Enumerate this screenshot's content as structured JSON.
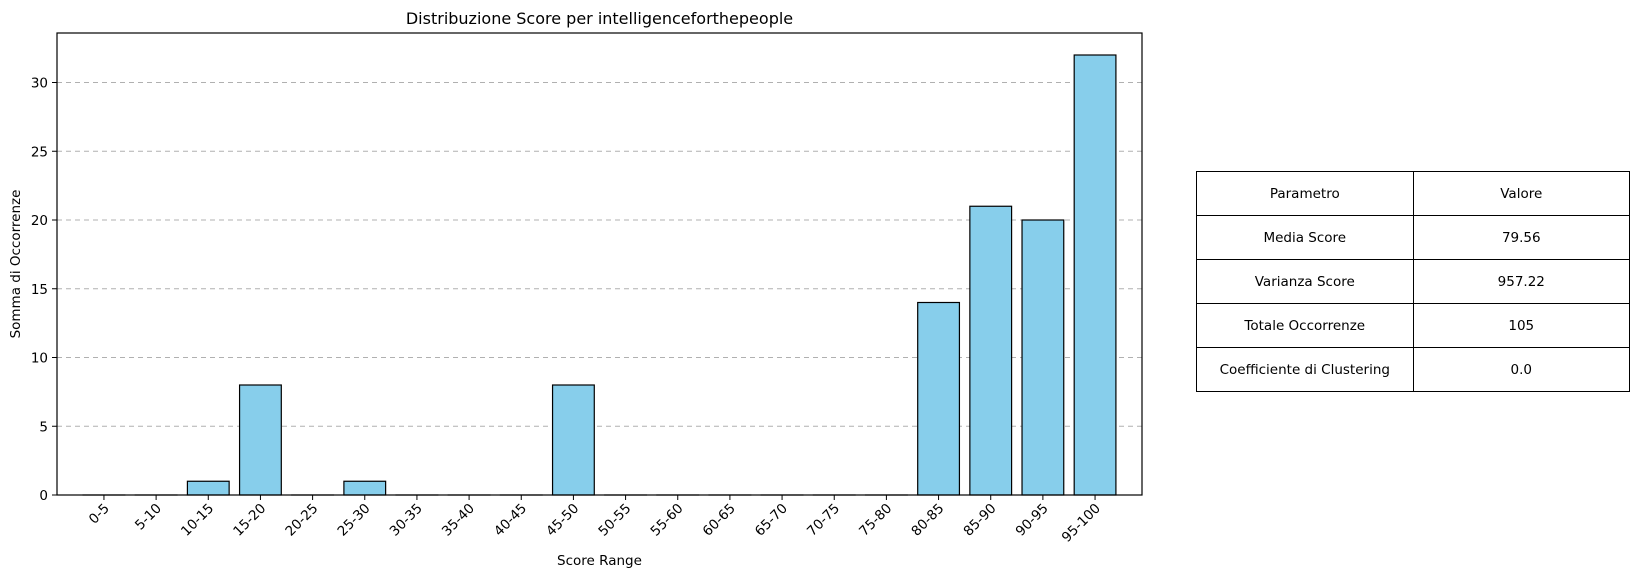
{
  "chart_data": {
    "type": "bar",
    "title": "Distribuzione Score per intelligenceforthepeople",
    "xlabel": "Score Range",
    "ylabel": "Somma di Occorrenze",
    "categories": [
      "0-5",
      "5-10",
      "10-15",
      "15-20",
      "20-25",
      "25-30",
      "30-35",
      "35-40",
      "40-45",
      "45-50",
      "50-55",
      "55-60",
      "60-65",
      "65-70",
      "70-75",
      "75-80",
      "80-85",
      "85-90",
      "90-95",
      "95-100"
    ],
    "values": [
      0,
      0,
      1,
      8,
      0,
      1,
      0,
      0,
      0,
      8,
      0,
      0,
      0,
      0,
      0,
      0,
      14,
      21,
      20,
      32
    ],
    "ylim": [
      0,
      33.6
    ],
    "yticks": [
      0,
      5,
      10,
      15,
      20,
      25,
      30
    ],
    "grid": "y-dashed",
    "bar_color": "#87ceeb",
    "edge_color": "#000000"
  },
  "table": {
    "headers": [
      "Parametro",
      "Valore"
    ],
    "rows": [
      [
        "Media Score",
        "79.56"
      ],
      [
        "Varianza Score",
        "957.22"
      ],
      [
        "Totale Occorrenze",
        "105"
      ],
      [
        "Coefficiente di Clustering",
        "0.0"
      ]
    ]
  }
}
